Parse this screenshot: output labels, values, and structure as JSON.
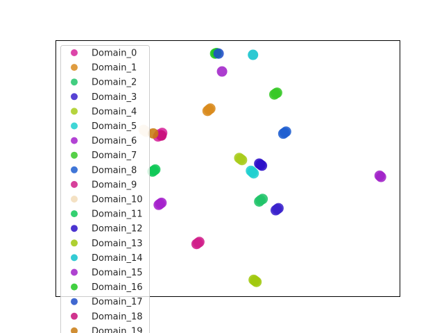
{
  "chart_data": {
    "type": "scatter",
    "title": "",
    "xlabel": "",
    "ylabel": "",
    "xlim": [
      0,
      100
    ],
    "ylim": [
      0,
      100
    ],
    "grid": false,
    "axis_ticks": false,
    "legend": {
      "placement": "top-left"
    },
    "series": [
      {
        "name": "Domain_0",
        "color": "#d6249a",
        "points": [
          [
            30.2,
            63.2
          ],
          [
            29.8,
            62.4
          ],
          [
            31.0,
            63.8
          ],
          [
            30.6,
            62.8
          ]
        ]
      },
      {
        "name": "Domain_1",
        "color": "#d98b1e",
        "points": [
          [
            44.6,
            72.9
          ],
          [
            44.2,
            72.4
          ],
          [
            45.0,
            73.3
          ]
        ]
      },
      {
        "name": "Domain_2",
        "color": "#21c46a",
        "points": [
          [
            59.6,
            37.5
          ],
          [
            59.2,
            37.0
          ],
          [
            60.2,
            38.0
          ]
        ]
      },
      {
        "name": "Domain_3",
        "color": "#3a22cc",
        "points": [
          [
            64.4,
            34.0
          ],
          [
            64.0,
            33.6
          ],
          [
            64.8,
            34.4
          ]
        ]
      },
      {
        "name": "Domain_4",
        "color": "#a8cc1c",
        "points": [
          [
            53.8,
            53.6
          ],
          [
            54.2,
            53.2
          ],
          [
            53.4,
            54.0
          ]
        ]
      },
      {
        "name": "Domain_5",
        "color": "#1fcfcf",
        "points": [
          [
            57.2,
            48.5
          ],
          [
            57.6,
            48.0
          ],
          [
            56.8,
            49.0
          ]
        ]
      },
      {
        "name": "Domain_6",
        "color": "#a522cc",
        "points": [
          [
            30.4,
            36.1
          ],
          [
            30.0,
            35.7
          ],
          [
            30.8,
            36.5
          ]
        ]
      },
      {
        "name": "Domain_7",
        "color": "#38c828",
        "points": [
          [
            64.0,
            79.2
          ],
          [
            63.6,
            78.8
          ],
          [
            64.4,
            79.5
          ]
        ]
      },
      {
        "name": "Domain_8",
        "color": "#1f5ed0",
        "points": [
          [
            66.6,
            63.9
          ],
          [
            66.2,
            63.5
          ],
          [
            67.0,
            64.3
          ]
        ]
      },
      {
        "name": "Domain_9",
        "color": "#d01f8a",
        "points": [
          [
            41.4,
            20.8
          ],
          [
            41.0,
            20.4
          ],
          [
            41.8,
            21.2
          ]
        ]
      },
      {
        "name": "Domain_10",
        "color": "#f2dcb8",
        "points": [
          [
            26.0,
            64.6
          ],
          [
            26.4,
            64.2
          ],
          [
            25.6,
            65.0
          ]
        ]
      },
      {
        "name": "Domain_11",
        "color": "#10c858",
        "points": [
          [
            28.6,
            49.1
          ],
          [
            28.2,
            48.7
          ],
          [
            29.0,
            49.5
          ]
        ]
      },
      {
        "name": "Domain_12",
        "color": "#2c10c8",
        "points": [
          [
            59.6,
            51.4
          ],
          [
            60.0,
            51.0
          ],
          [
            59.2,
            51.8
          ]
        ]
      },
      {
        "name": "Domain_13",
        "color": "#a0c80e",
        "points": [
          [
            58.0,
            6.0
          ],
          [
            58.4,
            5.6
          ],
          [
            57.6,
            6.4
          ]
        ]
      },
      {
        "name": "Domain_14",
        "color": "#10c2cc",
        "points": [
          [
            57.4,
            94.3
          ]
        ]
      },
      {
        "name": "Domain_15",
        "color": "#a022c8",
        "points": [
          [
            48.4,
            87.8
          ],
          [
            94.2,
            47.1
          ],
          [
            94.6,
            46.6
          ]
        ]
      },
      {
        "name": "Domain_16",
        "color": "#20c820",
        "points": [
          [
            46.4,
            94.8
          ],
          [
            46.8,
            95.0
          ]
        ]
      },
      {
        "name": "Domain_17",
        "color": "#1f4ec8",
        "points": [
          [
            47.4,
            94.8
          ]
        ]
      },
      {
        "name": "Domain_18",
        "color": "#c8107a",
        "points": [
          [
            30.8,
            62.8
          ]
        ]
      },
      {
        "name": "Domain_19",
        "color": "#c87a10",
        "points": [
          [
            28.4,
            63.6
          ]
        ]
      }
    ]
  }
}
